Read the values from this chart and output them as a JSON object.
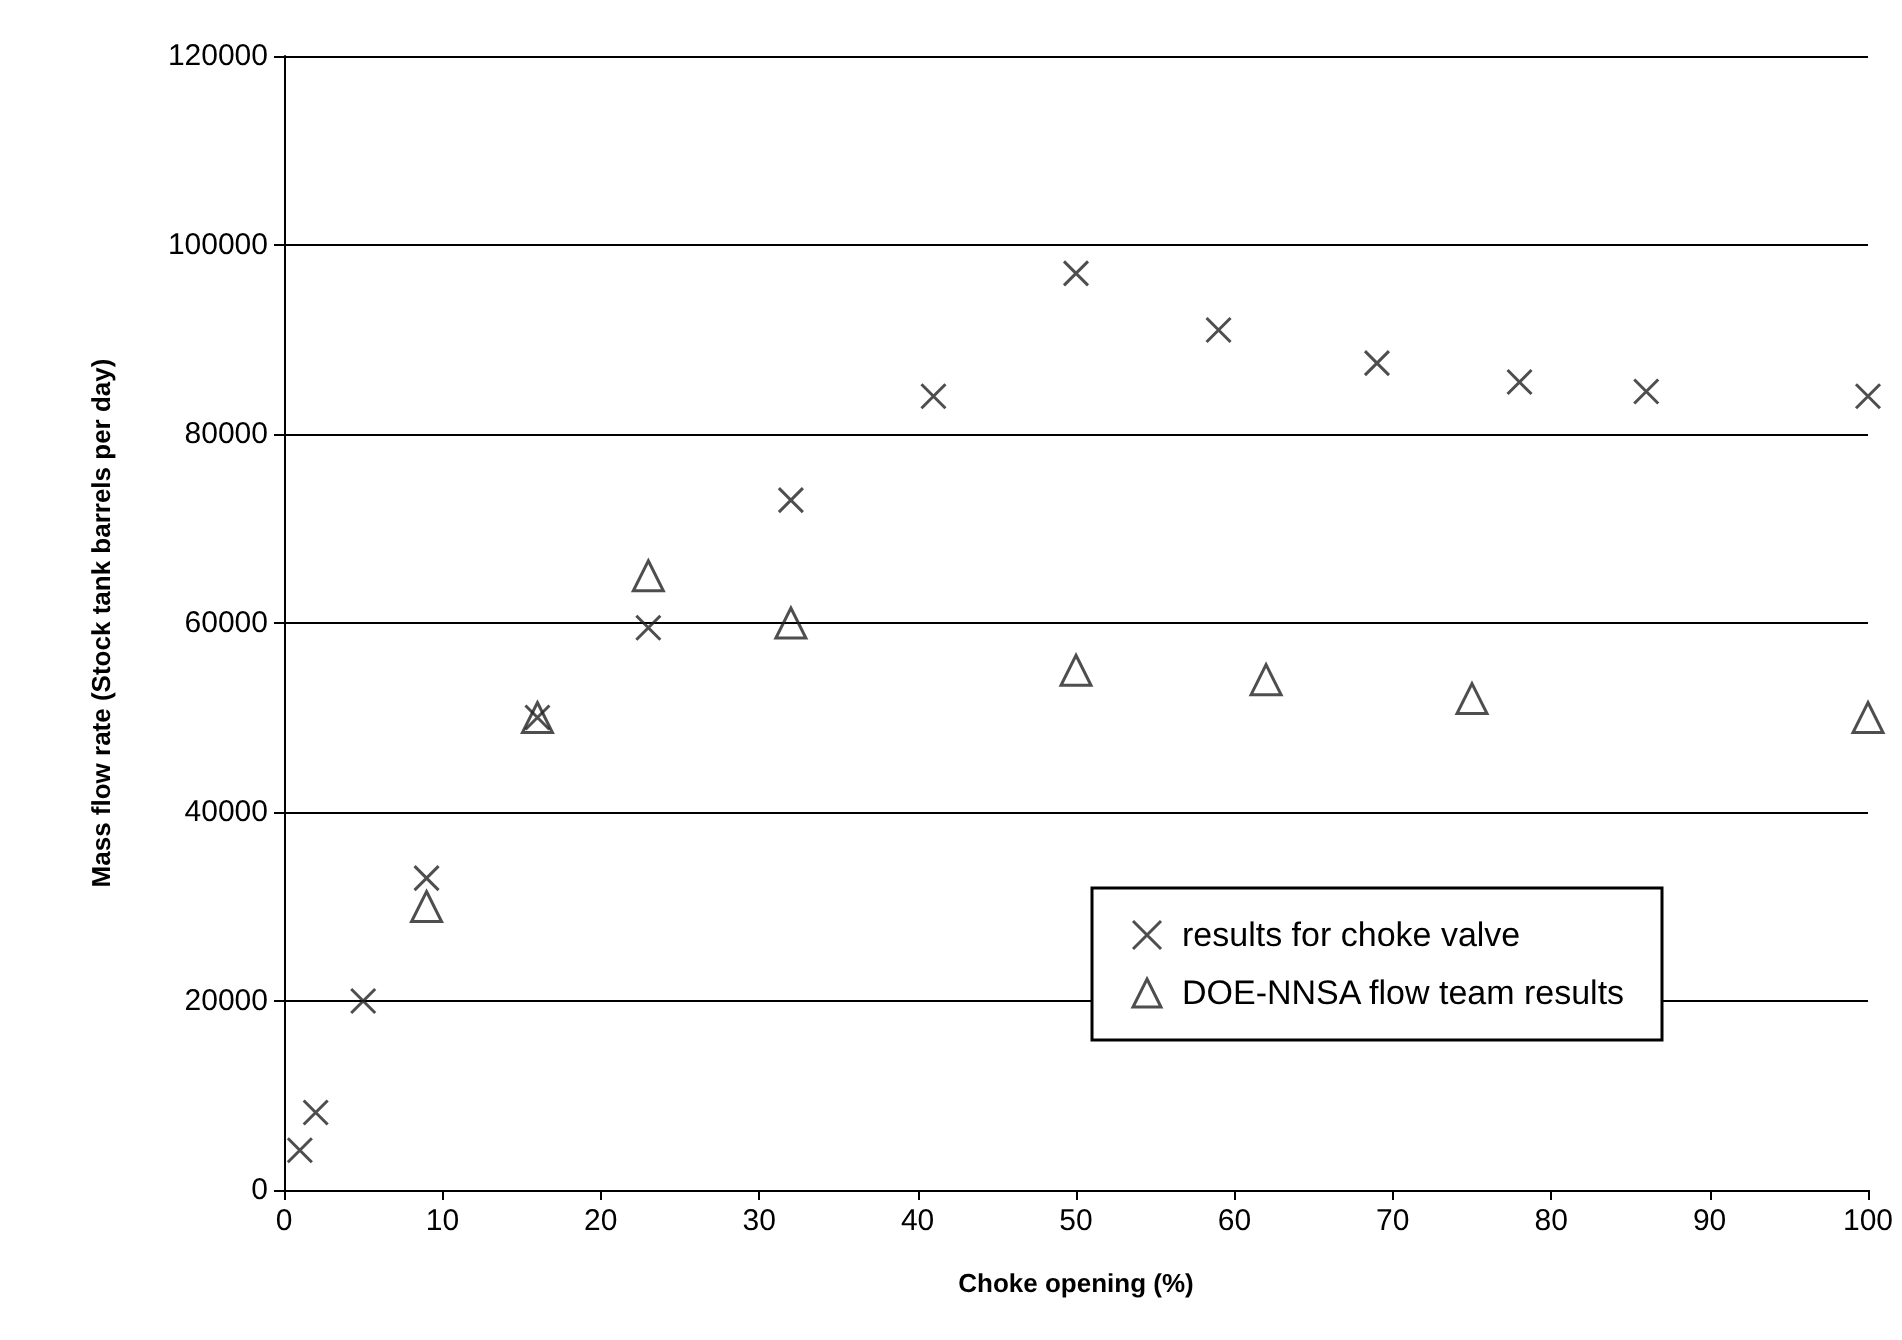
{
  "chart_data": {
    "type": "scatter",
    "xlabel": "Choke opening (%)",
    "ylabel": "Mass flow rate (Stock tank barrels per day)",
    "xlim": [
      0,
      100
    ],
    "xticks": [
      0,
      10,
      20,
      30,
      40,
      50,
      60,
      70,
      80,
      90,
      100
    ],
    "ylim": [
      0,
      120000
    ],
    "yticks": [
      0,
      20000,
      40000,
      60000,
      80000,
      100000,
      120000
    ],
    "grid": "y",
    "legend": "bottom right",
    "series": [
      {
        "name": "results for choke valve",
        "color": "#222222",
        "marker": "cross",
        "x": [
          1,
          2,
          5,
          9,
          16,
          23,
          32,
          41,
          50,
          59,
          69,
          78,
          86,
          100
        ],
        "values": [
          4200,
          8200,
          20000,
          33000,
          50000,
          59500,
          73000,
          84000,
          97000,
          91000,
          87500,
          85500,
          84500,
          84000
        ]
      },
      {
        "name": "DOE-NNSA flow team results",
        "color": "#222222",
        "marker": "triangle",
        "x": [
          9,
          16,
          23,
          32,
          50,
          62,
          75,
          100
        ],
        "values": [
          30000,
          50000,
          65000,
          60000,
          55000,
          54000,
          52000,
          50000
        ]
      }
    ]
  }
}
